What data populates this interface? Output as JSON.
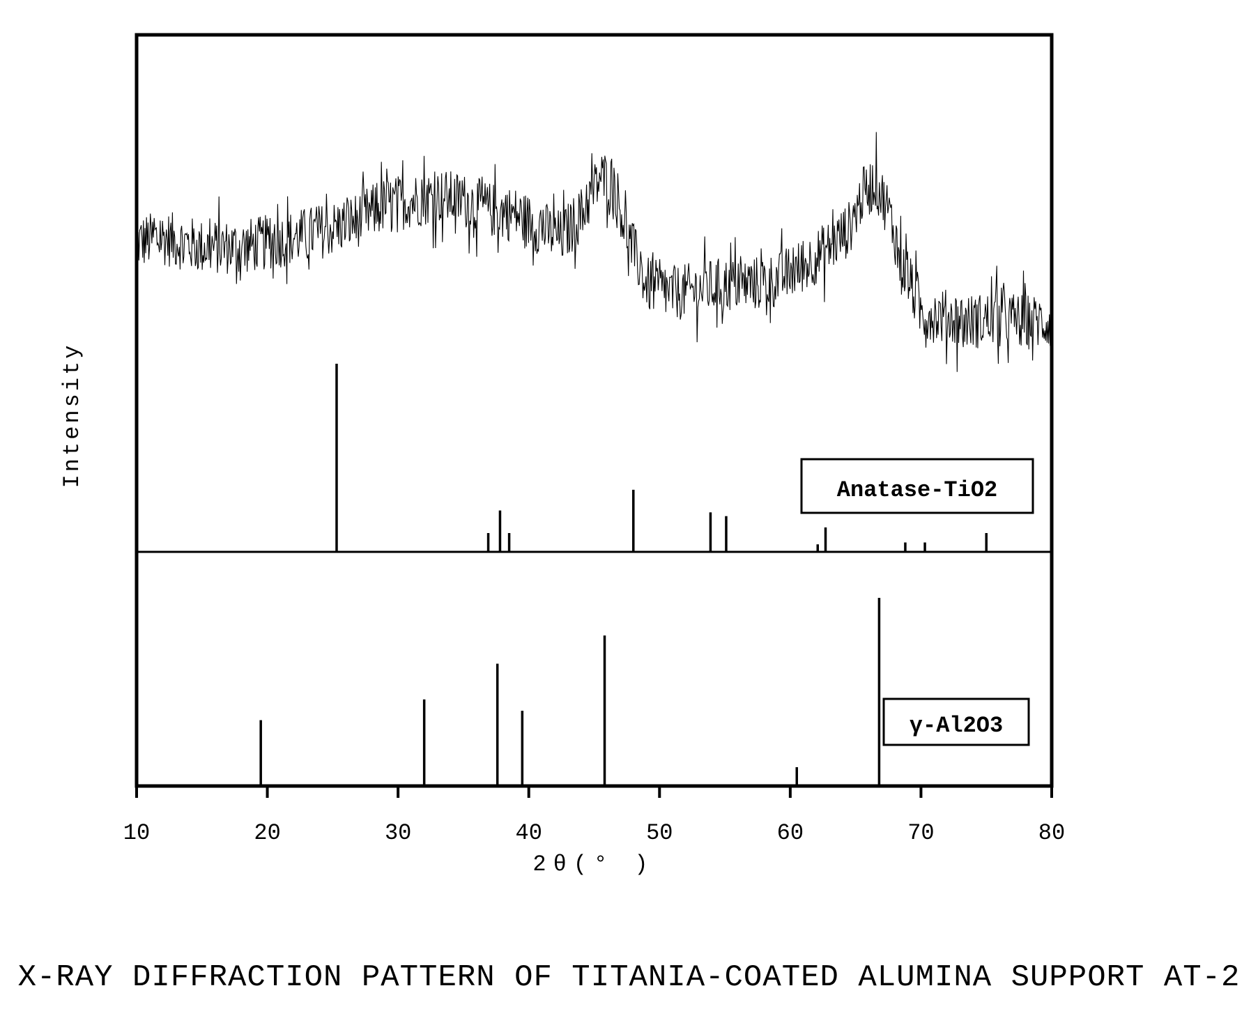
{
  "chart_data": {
    "type": "line",
    "ylabel": "Intensity",
    "xlabel": "2θ(° )",
    "xlim": [
      10,
      80
    ],
    "x_ticks": [
      10,
      20,
      30,
      40,
      50,
      60,
      70,
      80
    ],
    "grid": false,
    "caption": "X-RAY DIFFRACTION PATTERN OF TITANIA-COATED ALUMINA SUPPORT AT-2",
    "series": [
      {
        "type": "line",
        "x": [
          10,
          12,
          15,
          18,
          20,
          22,
          25,
          27,
          29,
          31,
          33,
          35,
          37,
          39,
          41,
          42.5,
          44,
          45.5,
          46.5,
          47.5,
          49,
          51,
          53,
          55,
          57,
          59,
          61,
          63,
          64.5,
          65.5,
          66.5,
          67.5,
          68.5,
          70,
          72,
          74,
          76,
          78,
          80
        ],
        "y": [
          60,
          61,
          59,
          59,
          60,
          61,
          63,
          65,
          68,
          69,
          70,
          69,
          67,
          66,
          63,
          61,
          66,
          74,
          73,
          62,
          51,
          49,
          50,
          51,
          51,
          52,
          55,
          59,
          63,
          70,
          73,
          67,
          56,
          45,
          44,
          43,
          44,
          43,
          43
        ],
        "noise": 6
      },
      {
        "name": "Anatase-TiO2",
        "type": "stick",
        "x": [
          25.3,
          36.9,
          37.8,
          38.5,
          48.0,
          53.9,
          55.1,
          62.1,
          62.7,
          68.8,
          70.3,
          75.0
        ],
        "y": [
          100,
          10,
          22,
          10,
          33,
          21,
          19,
          4,
          13,
          5,
          5,
          10
        ]
      },
      {
        "name": "γ-Al2O3",
        "type": "stick",
        "x": [
          19.5,
          32.0,
          37.6,
          39.5,
          45.8,
          60.5,
          66.8
        ],
        "y": [
          35,
          46,
          65,
          40,
          80,
          10,
          100
        ]
      }
    ]
  }
}
